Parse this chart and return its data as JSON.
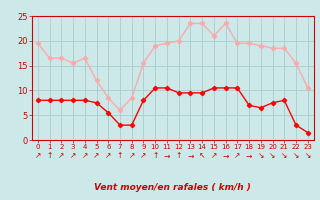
{
  "hours": [
    0,
    1,
    2,
    3,
    4,
    5,
    6,
    7,
    8,
    9,
    10,
    11,
    12,
    13,
    14,
    15,
    16,
    17,
    18,
    19,
    20,
    21,
    22,
    23
  ],
  "wind_avg": [
    8,
    8,
    8,
    8,
    8,
    7.5,
    5.5,
    3,
    3,
    8,
    10.5,
    10.5,
    9.5,
    9.5,
    9.5,
    10.5,
    10.5,
    10.5,
    7,
    6.5,
    7.5,
    8,
    3,
    1.5
  ],
  "wind_gust": [
    19.5,
    16.5,
    16.5,
    15.5,
    16.5,
    12,
    8.5,
    6,
    8.5,
    15.5,
    19,
    19.5,
    20,
    23.5,
    23.5,
    21,
    23.5,
    19.5,
    19.5,
    19,
    18.5,
    18.5,
    15.5,
    10.5
  ],
  "color_avg": "#ff0000",
  "color_gust": "#ffaaaa",
  "bg_color": "#cce8e8",
  "grid_color": "#aacccc",
  "xlabel": "Vent moyen/en rafales ( km/h )",
  "ylim": [
    0,
    25
  ],
  "yticks": [
    0,
    5,
    10,
    15,
    20,
    25
  ],
  "axis_color": "#cc0000",
  "tick_color": "#cc0000",
  "arrow_symbols": [
    "↗",
    "↑",
    "↗",
    "↗",
    "↗",
    "↗",
    "↗",
    "↑",
    "↗",
    "↗",
    "↑",
    "→",
    "↑",
    "→",
    "↖",
    "↗",
    "→",
    "↗",
    "→",
    "↘",
    "↘",
    "↘",
    "↘",
    "↘"
  ]
}
